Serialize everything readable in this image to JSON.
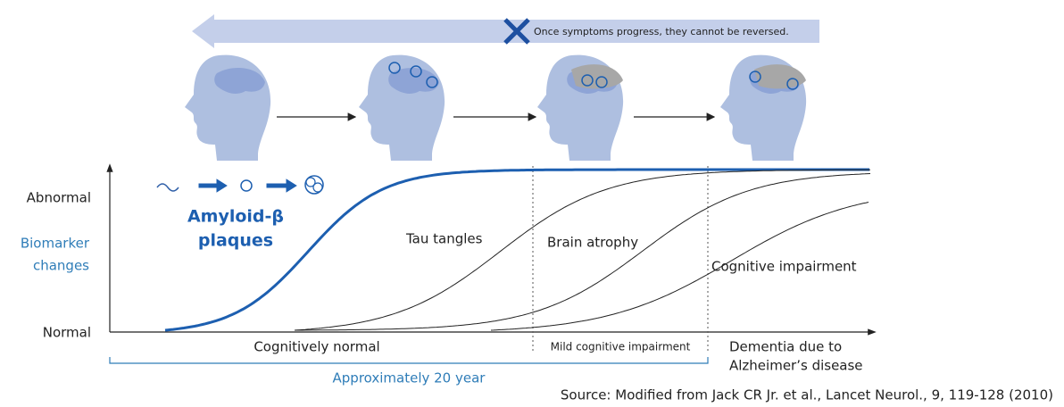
{
  "banner": {
    "text": "Once symptoms progress, they cannot be reversed."
  },
  "y_axis": {
    "top": "Abnormal",
    "title": [
      "Biomarker",
      "changes"
    ],
    "bottom": "Normal"
  },
  "curves": {
    "amyloid": [
      "Amyloid-β",
      "plaques"
    ],
    "tau": "Tau tangles",
    "atrophy": "Brain atrophy",
    "cognitive": "Cognitive impairment"
  },
  "stages": {
    "normal": "Cognitively normal",
    "mci": "Mild cognitive impairment",
    "dementia": [
      "Dementia due to",
      "Alzheimer’s disease"
    ]
  },
  "span": "Approximately 20 year",
  "source": "Source: Modified from Jack CR Jr. et al., Lancet Neurol., 9, 119-128 (2010)"
}
